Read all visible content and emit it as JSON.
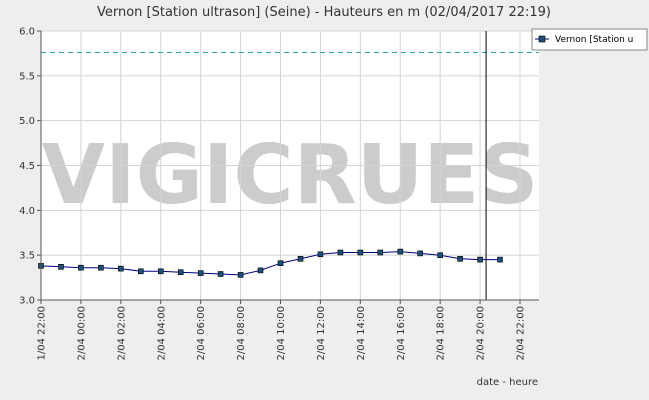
{
  "chart_data": {
    "type": "line",
    "title": "Vernon [Station ultrason] (Seine) - Hauteurs en m (02/04/2017 22:19)",
    "xlabel": "date - heure",
    "ylabel": "",
    "ylim": [
      3.0,
      6.0
    ],
    "yticks": [
      "3.0",
      "3.5",
      "4.0",
      "4.5",
      "5.0",
      "5.5",
      "6.0"
    ],
    "x_ticks": [
      "1/04 22:00",
      "2/04 00:00",
      "2/04 02:00",
      "2/04 04:00",
      "2/04 06:00",
      "2/04 08:00",
      "2/04 10:00",
      "2/04 12:00",
      "2/04 14:00",
      "2/04 16:00",
      "2/04 18:00",
      "2/04 20:00",
      "2/04 22:00"
    ],
    "grid": true,
    "legend_position": "right",
    "reference_line": {
      "value": 5.76,
      "color": "#2aa3a3"
    },
    "current_time_marker_hour": 22.3,
    "watermark": "VIGICRUES",
    "series": [
      {
        "name": "Vernon [Station u",
        "color": "#000080",
        "hours_from_start": [
          0,
          1,
          2,
          3,
          4,
          5,
          6,
          7,
          8,
          9,
          10,
          11,
          12,
          13,
          14,
          15,
          16,
          17,
          18,
          19,
          20,
          21,
          22,
          23
        ],
        "values": [
          3.38,
          3.37,
          3.36,
          3.36,
          3.35,
          3.32,
          3.32,
          3.31,
          3.3,
          3.29,
          3.28,
          3.33,
          3.41,
          3.46,
          3.51,
          3.53,
          3.53,
          3.53,
          3.54,
          3.52,
          3.5,
          3.46,
          3.45,
          3.45
        ]
      }
    ]
  }
}
